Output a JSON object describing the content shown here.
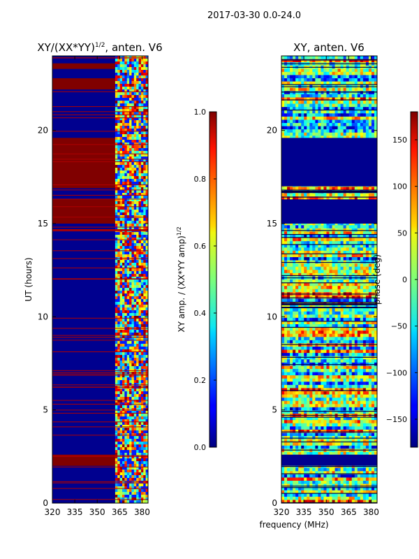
{
  "figure": {
    "suptitle": "2017-03-30 0.0-24.0",
    "shared_xlabel": "frequency (MHz)"
  },
  "chart_data": [
    {
      "type": "heatmap",
      "title": "XY/(XX*YY)",
      "title_sup": "1/2",
      "title_suffix": ", anten. V6",
      "xlabel": "",
      "ylabel": "UT (hours)",
      "xlim": [
        320,
        384
      ],
      "ylim": [
        0,
        24
      ],
      "xticks": [
        320,
        335,
        350,
        365,
        380
      ],
      "yticks": [
        0,
        5,
        10,
        15,
        20
      ],
      "colormap": "jet",
      "color_range": [
        0.0,
        1.0
      ],
      "colorbar_label": "XY amp. / (XX*YY amp)",
      "colorbar_label_sup": "1/2",
      "colorbar_ticks": [
        "0.0",
        "0.2",
        "0.4",
        "0.6",
        "0.8",
        "1.0"
      ],
      "colorbar_tick_values": [
        0.0,
        0.2,
        0.4,
        0.6,
        0.8,
        1.0
      ],
      "saturated_bands_hours": [
        [
          2.0,
          2.6
        ],
        [
          15.0,
          16.3
        ],
        [
          16.9,
          19.6
        ],
        [
          22.2,
          22.8
        ],
        [
          23.3,
          23.6
        ]
      ],
      "active_freq_start_mhz": 362
    },
    {
      "type": "heatmap",
      "title": "XY, anten. V6",
      "xlabel": "frequency (MHz)",
      "ylabel": "",
      "xlim": [
        320,
        384
      ],
      "ylim": [
        0,
        24
      ],
      "xticks": [
        320,
        335,
        350,
        365,
        380
      ],
      "yticks": [
        0,
        5,
        10,
        15,
        20
      ],
      "colormap": "jet",
      "color_range": [
        -180,
        180
      ],
      "colorbar_label": "phase (deg)",
      "colorbar_ticks": [
        "−150",
        "−100",
        "−50",
        "0",
        "50",
        "100",
        "150"
      ],
      "colorbar_tick_values": [
        -150,
        -100,
        -50,
        0,
        50,
        100,
        150
      ],
      "low_bands_hours": [
        [
          2.0,
          2.6
        ],
        [
          15.0,
          16.3
        ],
        [
          17.0,
          19.6
        ]
      ]
    }
  ]
}
